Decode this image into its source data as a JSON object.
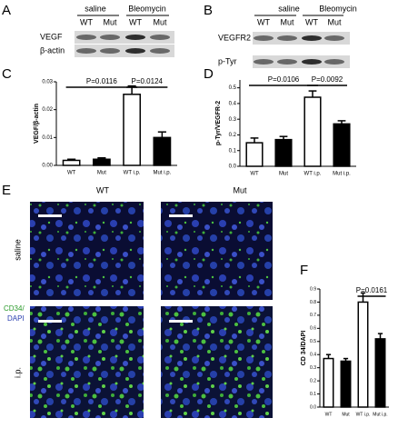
{
  "panel_labels": [
    "A",
    "B",
    "C",
    "D",
    "E",
    "F"
  ],
  "blots": [
    {
      "groups": [
        "saline",
        "Bleomycin"
      ],
      "lanes": [
        "WT",
        "Mut",
        "WT",
        "Mut"
      ],
      "rows": [
        "VEGF",
        "β-actin"
      ]
    },
    {
      "groups": [
        "saline",
        "Bleomycin"
      ],
      "lanes": [
        "WT",
        "Mut",
        "WT",
        "Mut"
      ],
      "rows": [
        "VEGFR2",
        "p-Tyr"
      ]
    }
  ],
  "images": {
    "columns": [
      "WT",
      "Mut"
    ],
    "rows": [
      "saline",
      "i.p."
    ],
    "stain": [
      "CD34/",
      "DAPI"
    ]
  },
  "chart_data": [
    {
      "type": "bar",
      "y_label": "VEGF/β-actin",
      "categories": [
        "WT",
        "Mut",
        "WT i.p.",
        "Mut i.p."
      ],
      "values": [
        0.0018,
        0.0022,
        0.0255,
        0.01
      ],
      "errors": [
        0.0004,
        0.0005,
        0.003,
        0.002
      ],
      "colors": [
        "#ffffff",
        "#000000",
        "#ffffff",
        "#000000"
      ],
      "ylim": [
        0,
        0.03
      ],
      "yticks": [
        {
          "value": 0,
          "label": "0.00"
        },
        {
          "value": 0.01,
          "label": "0.01"
        },
        {
          "value": 0.02,
          "label": "0.02"
        },
        {
          "value": 0.03,
          "label": "0.03"
        }
      ],
      "annotations": [
        "P=0.0116",
        "P=0.0124"
      ]
    },
    {
      "type": "bar",
      "y_label": "p-Tyr/VEGFR-2",
      "categories": [
        "WT",
        "Mut",
        "WT i.p.",
        "Mut i.p."
      ],
      "values": [
        0.15,
        0.17,
        0.44,
        0.27
      ],
      "errors": [
        0.03,
        0.02,
        0.04,
        0.02
      ],
      "colors": [
        "#ffffff",
        "#000000",
        "#ffffff",
        "#000000"
      ],
      "ylim": [
        0,
        0.55
      ],
      "yticks": [
        {
          "value": 0,
          "label": "0.0"
        },
        0.1,
        0.2,
        0.3,
        0.4,
        0.5
      ],
      "annotations": [
        "P=0.0106",
        "P=0.0092"
      ]
    },
    {
      "type": "bar",
      "y_label": "CD 34/DAPI",
      "categories": [
        "WT",
        "Mut",
        "WT i.p.",
        "Mut i.p."
      ],
      "values": [
        0.37,
        0.35,
        0.8,
        0.52
      ],
      "errors": [
        0.03,
        0.02,
        0.07,
        0.04
      ],
      "colors": [
        "#ffffff",
        "#000000",
        "#ffffff",
        "#000000"
      ],
      "ylim": [
        0,
        0.9
      ],
      "yticks": [
        {
          "value": 0,
          "label": "0.0"
        },
        0.1,
        0.2,
        0.3,
        0.4,
        0.5,
        0.6,
        0.7,
        0.8,
        0.9
      ],
      "annotations": [
        "P=0.0161"
      ]
    }
  ]
}
